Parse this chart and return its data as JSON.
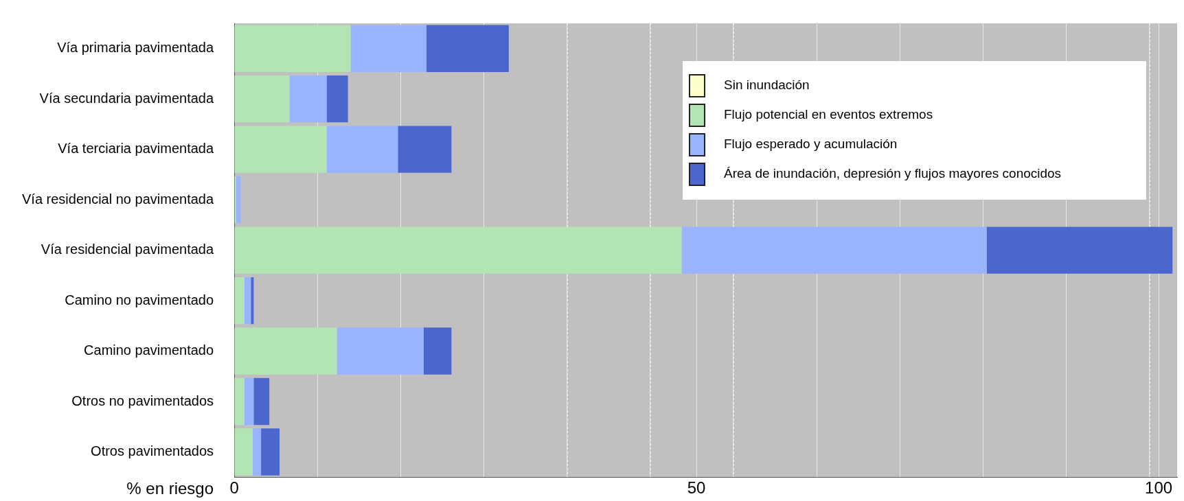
{
  "chart_data": {
    "type": "bar",
    "orientation": "horizontal",
    "stacked": true,
    "xlabel": "% en riesgo",
    "categories": [
      "Vía primaria pavimentada",
      "Vía secundaria pavimentada",
      "Vía terciaria pavimentada",
      "Vía residencial no pavimentada",
      "Vía residencial pavimentada",
      "Camino no pavimentado",
      "Camino pavimentado",
      "Otros no pavimentados",
      "Otros pavimentados"
    ],
    "series": [
      {
        "name": "Sin inundación",
        "color": "#ffffcc",
        "values": [
          0,
          0,
          0,
          0,
          0,
          0,
          0,
          0,
          0
        ]
      },
      {
        "name": "Flujo potencial en eventos extremos",
        "color": "#b3e4b3",
        "values": [
          12.6,
          6.0,
          10.0,
          0.2,
          48.4,
          1.1,
          11.1,
          1.1,
          2.0
        ]
      },
      {
        "name": "Flujo esperado y acumulación",
        "color": "#99b3ff",
        "values": [
          8.2,
          4.0,
          7.7,
          0.5,
          33.0,
          0.7,
          9.4,
          1.0,
          0.9
        ]
      },
      {
        "name": "Área de inundación, depresión y flujos mayores conocidos",
        "color": "#4b66cc",
        "values": [
          8.9,
          2.3,
          5.8,
          0,
          20.1,
          0.3,
          3.0,
          1.7,
          2.0
        ]
      }
    ],
    "xlim": [
      0,
      102
    ],
    "xticks": [
      0,
      {
        "value": 9,
        "label": null
      },
      {
        "value": 18,
        "label": null
      },
      {
        "value": 27,
        "label": null
      },
      {
        "value": 36,
        "label": null
      },
      {
        "value": 45,
        "label": null
      },
      50,
      {
        "value": 54,
        "label": null
      },
      {
        "value": 63,
        "label": null
      },
      {
        "value": 72,
        "label": null
      },
      {
        "value": 81,
        "label": null
      },
      {
        "value": 90,
        "label": null
      },
      {
        "value": 99,
        "label": null
      },
      100
    ],
    "grid": "x",
    "legend": "top right"
  }
}
